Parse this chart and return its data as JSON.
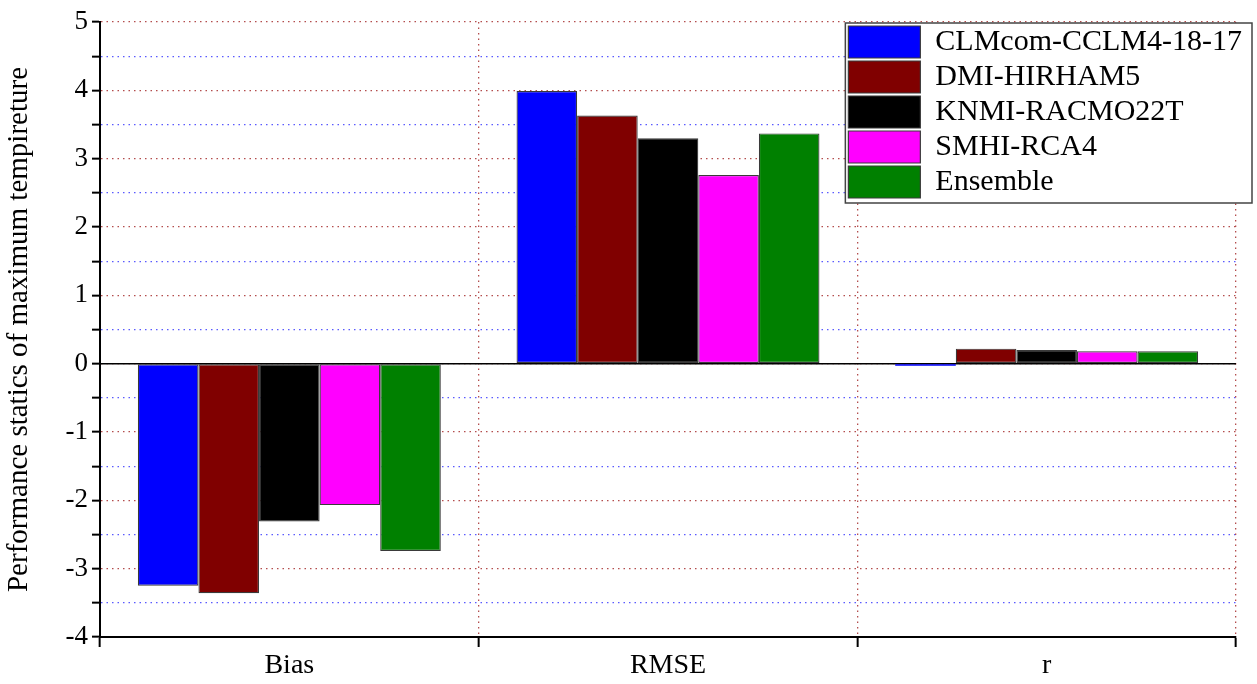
{
  "chart_data": {
    "type": "bar",
    "ylabel": "Performance statics of maximum tempireture",
    "categories": [
      "Bias",
      "RMSE",
      "r"
    ],
    "series": [
      {
        "name": "CLMcom-CCLM4-18-17",
        "color": "#0000ff",
        "values": [
          -3.25,
          3.99,
          -0.03
        ]
      },
      {
        "name": "DMI-HIRHAM5",
        "color": "#800000",
        "values": [
          -3.36,
          3.63,
          0.22
        ]
      },
      {
        "name": "KNMI-RACMO22T",
        "color": "#000000",
        "values": [
          -2.31,
          3.3,
          0.2
        ]
      },
      {
        "name": "SMHI-RCA4",
        "color": "#ff00ff",
        "values": [
          -2.07,
          2.76,
          0.18
        ]
      },
      {
        "name": "Ensemble",
        "color": "#008000",
        "values": [
          -2.74,
          3.37,
          0.18
        ]
      }
    ],
    "ylim": [
      -4,
      5
    ],
    "yticks": [
      -4,
      {
        "value": -3.5,
        "label": null
      },
      -3,
      {
        "value": -2.5,
        "label": null
      },
      -2,
      {
        "value": -1.5,
        "label": null
      },
      -1,
      {
        "value": -0.5,
        "label": null
      },
      0,
      {
        "value": 0.5,
        "label": null
      },
      1,
      {
        "value": 1.5,
        "label": null
      },
      2,
      {
        "value": 2.5,
        "label": null
      },
      3,
      {
        "value": 3.5,
        "label": null
      },
      4,
      {
        "value": 4.5,
        "label": null
      },
      5
    ],
    "grid": true,
    "legend": "top right",
    "ref_lines": [
      {
        "axis": "y",
        "value": 0,
        "color": "#000000"
      }
    ]
  }
}
